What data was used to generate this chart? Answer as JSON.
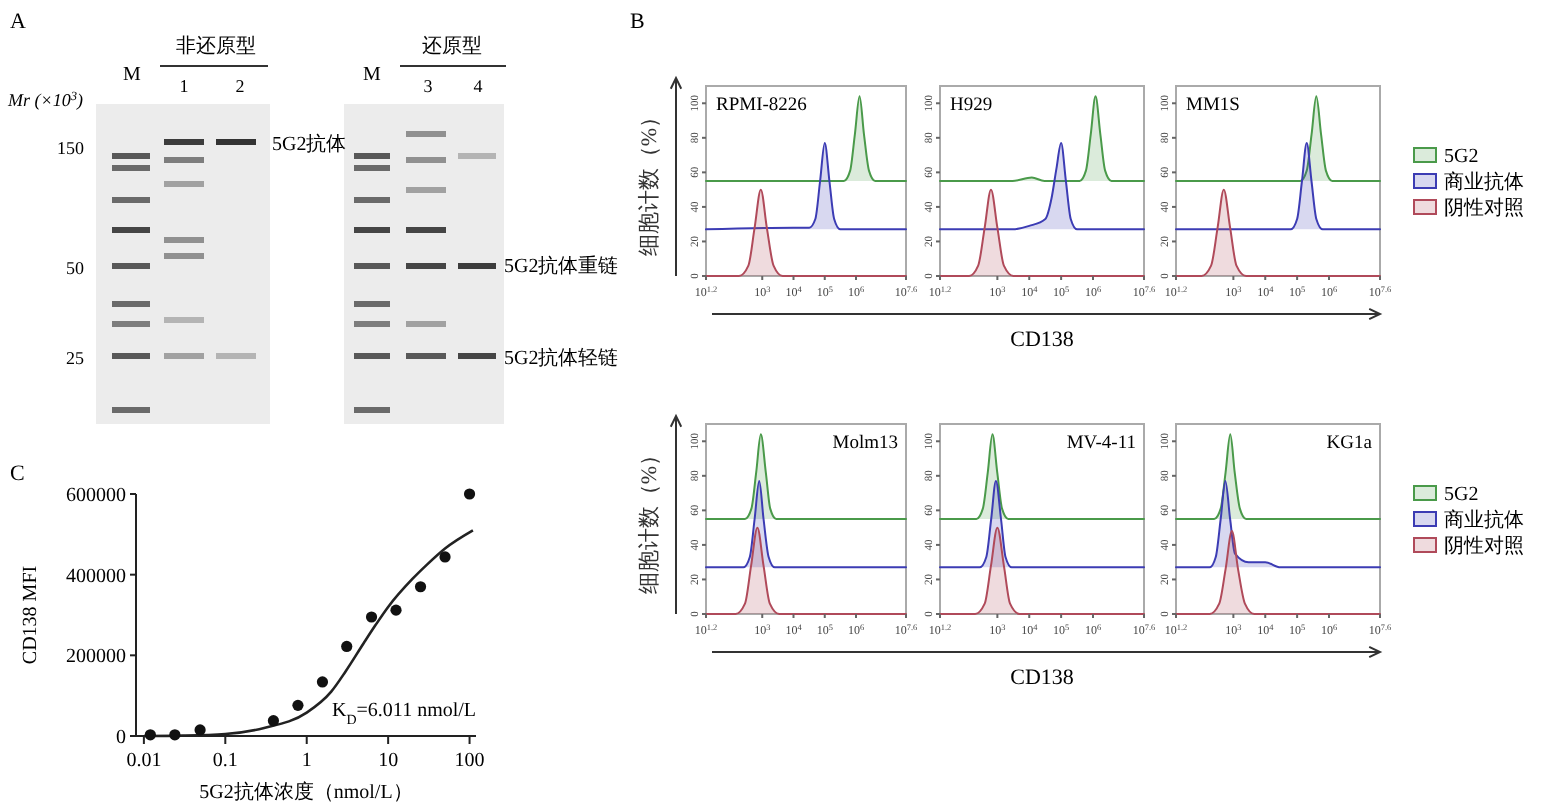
{
  "chart_data": [
    {
      "type": "other",
      "title": "A",
      "annotations": [
        "非还原型",
        "还原型",
        "M",
        "1",
        "2",
        "M",
        "3",
        "4",
        "Mr (×10$^{3}$)",
        "150",
        "50",
        "25",
        "5G2抗体",
        "5G2抗体重链",
        "5G2抗体轻链"
      ]
    },
    {
      "type": "area",
      "title": "RPMI-8226",
      "annotations": [
        "B"
      ],
      "ylabel": "细胞计数（%）",
      "log": "x",
      "xlim": [
        15.85,
        39810717
      ],
      "ylim": [
        0,
        110
      ],
      "xticks": [
        {
          "value": 15.85,
          "label": "10$^{1.2}$"
        },
        {
          "value": 1000,
          "label": "10$^{3}$"
        },
        {
          "value": 10000,
          "label": "10$^{4}$"
        },
        {
          "value": 100000,
          "label": "10$^{5}$"
        },
        {
          "value": 1000000,
          "label": "10$^{6}$"
        },
        {
          "value": 39810717,
          "label": "10$^{7.6}$"
        }
      ],
      "yticks": [
        0,
        20,
        40,
        60,
        80,
        100
      ],
      "series": [
        {
          "color": "#4a9a4a",
          "x": [
            15.85,
            410000,
            650000,
            920000,
            1300000,
            1800000,
            2600000,
            4100000,
            39810717
          ],
          "values": [
            55,
            55,
            61,
            82,
            104,
            82,
            61,
            55,
            55
          ]
        },
        {
          "color": "#3c3cb4",
          "x": [
            15.85,
            10000,
            32000,
            50000,
            71000,
            100000,
            141000,
            200000,
            316000,
            39810717
          ],
          "values": [
            27,
            28,
            28,
            33,
            55,
            77,
            55,
            33,
            27,
            27
          ]
        },
        {
          "color": "#b04a5a",
          "x": [
            15.85,
            180,
            360,
            570,
            900,
            1400,
            2300,
            4500,
            39810717
          ],
          "values": [
            0,
            0,
            6,
            28,
            50,
            28,
            6,
            0,
            0
          ]
        }
      ]
    },
    {
      "type": "area",
      "title": "H929",
      "xlabel": "CD138",
      "log": "x",
      "xlim": [
        15.85,
        39810717
      ],
      "ylim": [
        0,
        110
      ],
      "xticks": [
        {
          "value": 15.85,
          "label": "10$^{1.2}$"
        },
        {
          "value": 1000,
          "label": "10$^{3}$"
        },
        {
          "value": 10000,
          "label": "10$^{4}$"
        },
        {
          "value": 100000,
          "label": "10$^{5}$"
        },
        {
          "value": 1000000,
          "label": "10$^{6}$"
        },
        {
          "value": 39810717,
          "label": "10$^{7.6}$"
        }
      ],
      "yticks": [
        0,
        20,
        40,
        60,
        80,
        100
      ],
      "series": [
        {
          "color": "#4a9a4a",
          "x": [
            15.85,
            3000,
            12000,
            30000,
            380000,
            600000,
            850000,
            1200000,
            1700000,
            2400000,
            3800000,
            39810717
          ],
          "values": [
            55,
            55,
            57,
            55,
            55,
            61,
            82,
            104,
            82,
            61,
            55,
            55
          ]
        },
        {
          "color": "#3c3cb4",
          "x": [
            15.85,
            3000,
            10000,
            32000,
            50000,
            71000,
            100000,
            141000,
            200000,
            316000,
            39810717
          ],
          "values": [
            27,
            27,
            29,
            33,
            45,
            62,
            77,
            55,
            33,
            27,
            27
          ]
        },
        {
          "color": "#b04a5a",
          "x": [
            15.85,
            130,
            250,
            400,
            630,
            1000,
            1600,
            3200,
            39810717
          ],
          "values": [
            0,
            0,
            6,
            28,
            50,
            28,
            6,
            0,
            0
          ]
        }
      ]
    },
    {
      "type": "area",
      "title": "MM1S",
      "legend": "right",
      "log": "x",
      "xlim": [
        15.85,
        39810717
      ],
      "ylim": [
        0,
        110
      ],
      "xticks": [
        {
          "value": 15.85,
          "label": "10$^{1.2}$"
        },
        {
          "value": 1000,
          "label": "10$^{3}$"
        },
        {
          "value": 10000,
          "label": "10$^{4}$"
        },
        {
          "value": 100000,
          "label": "10$^{5}$"
        },
        {
          "value": 1000000,
          "label": "10$^{6}$"
        },
        {
          "value": 39810717,
          "label": "10$^{7.6}$"
        }
      ],
      "yticks": [
        0,
        20,
        40,
        60,
        80,
        100
      ],
      "series": [
        {
          "name": "5G2",
          "color": "#4a9a4a",
          "x": [
            15.85,
            126000,
            200000,
            284000,
            400000,
            564000,
            800000,
            1260000,
            39810717
          ],
          "values": [
            55,
            55,
            61,
            82,
            104,
            82,
            61,
            55,
            55
          ]
        },
        {
          "name": "商业抗体",
          "color": "#3c3cb4",
          "x": [
            15.85,
            63000,
            100000,
            142000,
            200000,
            282000,
            400000,
            632000,
            39810717
          ],
          "values": [
            27,
            27,
            33,
            55,
            77,
            55,
            33,
            27,
            27
          ]
        },
        {
          "name": "阴性对照",
          "color": "#b04a5a",
          "x": [
            15.85,
            100,
            200,
            320,
            500,
            790,
            1250,
            2500,
            39810717
          ],
          "values": [
            0,
            0,
            6,
            28,
            50,
            28,
            6,
            0,
            0
          ]
        }
      ]
    },
    {
      "type": "area",
      "title": "Molm13",
      "ylabel": "细胞计数（%）",
      "log": "x",
      "xlim": [
        15.85,
        39810717
      ],
      "ylim": [
        0,
        110
      ],
      "xticks": [
        {
          "value": 15.85,
          "label": "10$^{1.2}$"
        },
        {
          "value": 1000,
          "label": "10$^{3}$"
        },
        {
          "value": 10000,
          "label": "10$^{4}$"
        },
        {
          "value": 100000,
          "label": "10$^{5}$"
        },
        {
          "value": 1000000,
          "label": "10$^{6}$"
        },
        {
          "value": 39810717,
          "label": "10$^{7.6}$"
        }
      ],
      "yticks": [
        0,
        20,
        40,
        60,
        80,
        100
      ],
      "series": [
        {
          "color": "#4a9a4a",
          "x": [
            15.85,
            280,
            450,
            640,
            900,
            1300,
            1800,
            2800,
            39810717
          ],
          "values": [
            55,
            55,
            61,
            82,
            104,
            82,
            61,
            55,
            55
          ]
        },
        {
          "color": "#3c3cb4",
          "x": [
            15.85,
            250,
            400,
            570,
            800,
            1100,
            1600,
            2500,
            39810717
          ],
          "values": [
            27,
            27,
            33,
            55,
            77,
            55,
            33,
            27,
            27
          ]
        },
        {
          "color": "#b04a5a",
          "x": [
            15.85,
            140,
            280,
            440,
            700,
            1100,
            1750,
            3500,
            39810717
          ],
          "values": [
            0,
            0,
            6,
            28,
            50,
            28,
            6,
            0,
            0
          ]
        }
      ]
    },
    {
      "type": "area",
      "title": "MV-4-11",
      "xlabel": "CD138",
      "log": "x",
      "xlim": [
        15.85,
        39810717
      ],
      "ylim": [
        0,
        110
      ],
      "xticks": [
        {
          "value": 15.85,
          "label": "10$^{1.2}$"
        },
        {
          "value": 1000,
          "label": "10$^{3}$"
        },
        {
          "value": 10000,
          "label": "10$^{4}$"
        },
        {
          "value": 100000,
          "label": "10$^{5}$"
        },
        {
          "value": 1000000,
          "label": "10$^{6}$"
        },
        {
          "value": 39810717,
          "label": "10$^{7.6}$"
        }
      ],
      "yticks": [
        0,
        20,
        40,
        60,
        80,
        100
      ],
      "series": [
        {
          "color": "#4a9a4a",
          "x": [
            15.85,
            220,
            350,
            500,
            700,
            990,
            1400,
            2200,
            39810717
          ],
          "values": [
            55,
            55,
            61,
            82,
            104,
            82,
            61,
            55,
            55
          ]
        },
        {
          "color": "#3c3cb4",
          "x": [
            15.85,
            280,
            450,
            640,
            900,
            1300,
            1800,
            2800,
            39810717
          ],
          "values": [
            27,
            27,
            33,
            55,
            77,
            55,
            33,
            27,
            27
          ]
        },
        {
          "color": "#b04a5a",
          "x": [
            15.85,
            200,
            400,
            630,
            1000,
            1600,
            2500,
            5000,
            39810717
          ],
          "values": [
            0,
            0,
            6,
            28,
            50,
            28,
            6,
            0,
            0
          ]
        }
      ]
    },
    {
      "type": "area",
      "title": "KG1a",
      "legend": "right",
      "log": "x",
      "xlim": [
        15.85,
        39810717
      ],
      "ylim": [
        0,
        110
      ],
      "xticks": [
        {
          "value": 15.85,
          "label": "10$^{1.2}$"
        },
        {
          "value": 1000,
          "label": "10$^{3}$"
        },
        {
          "value": 10000,
          "label": "10$^{4}$"
        },
        {
          "value": 100000,
          "label": "10$^{5}$"
        },
        {
          "value": 1000000,
          "label": "10$^{6}$"
        },
        {
          "value": 39810717,
          "label": "10$^{7.6}$"
        }
      ],
      "yticks": [
        0,
        20,
        40,
        60,
        80,
        100
      ],
      "series": [
        {
          "name": "5G2",
          "color": "#4a9a4a",
          "x": [
            15.85,
            250,
            400,
            570,
            800,
            1100,
            1600,
            2500,
            39810717
          ],
          "values": [
            55,
            55,
            61,
            82,
            104,
            82,
            61,
            55,
            55
          ]
        },
        {
          "name": "商业抗体",
          "color": "#3c3cb4",
          "x": [
            15.85,
            180,
            280,
            400,
            560,
            790,
            1120,
            3000,
            10000,
            30000,
            39810717
          ],
          "values": [
            27,
            27,
            33,
            55,
            77,
            55,
            35,
            30,
            30,
            27,
            27
          ]
        },
        {
          "name": "阴性对照",
          "color": "#b04a5a",
          "x": [
            15.85,
            180,
            360,
            570,
            900,
            1400,
            2300,
            4500,
            39810717
          ],
          "values": [
            0,
            0,
            6,
            26,
            48,
            26,
            6,
            0,
            0
          ]
        }
      ]
    },
    {
      "type": "scatter",
      "title": "C",
      "xlabel": "5G2抗体浓度（nmol/L）",
      "ylabel": "CD138 MFI",
      "log": "x",
      "xlim": [
        0.008,
        120
      ],
      "ylim": [
        0,
        600000
      ],
      "xticks": [
        0.01,
        0.1,
        1,
        10,
        100
      ],
      "yticks": [
        0,
        200000,
        400000,
        600000
      ],
      "annotations": [
        "K$_{D}$=6.011 nmol/L"
      ],
      "series": [
        {
          "type": "line",
          "marker": "none",
          "color": "#222222",
          "x": [
            0.01,
            0.03,
            0.1,
            0.3,
            1,
            2,
            3,
            5,
            7,
            10,
            20,
            30,
            50,
            110
          ],
          "values": [
            0,
            1000,
            5000,
            20000,
            58000,
            110000,
            160000,
            230000,
            275000,
            320000,
            390000,
            425000,
            465000,
            510000
          ]
        },
        {
          "marker": "circle",
          "color": "#111111",
          "x": [
            0.012,
            0.024,
            0.049,
            0.39,
            0.78,
            1.56,
            3.1,
            6.25,
            12.5,
            25,
            50,
            100
          ],
          "values": [
            3000,
            3000,
            15000,
            38000,
            76000,
            134000,
            222000,
            295000,
            312000,
            370000,
            444000,
            600000
          ]
        }
      ]
    }
  ]
}
